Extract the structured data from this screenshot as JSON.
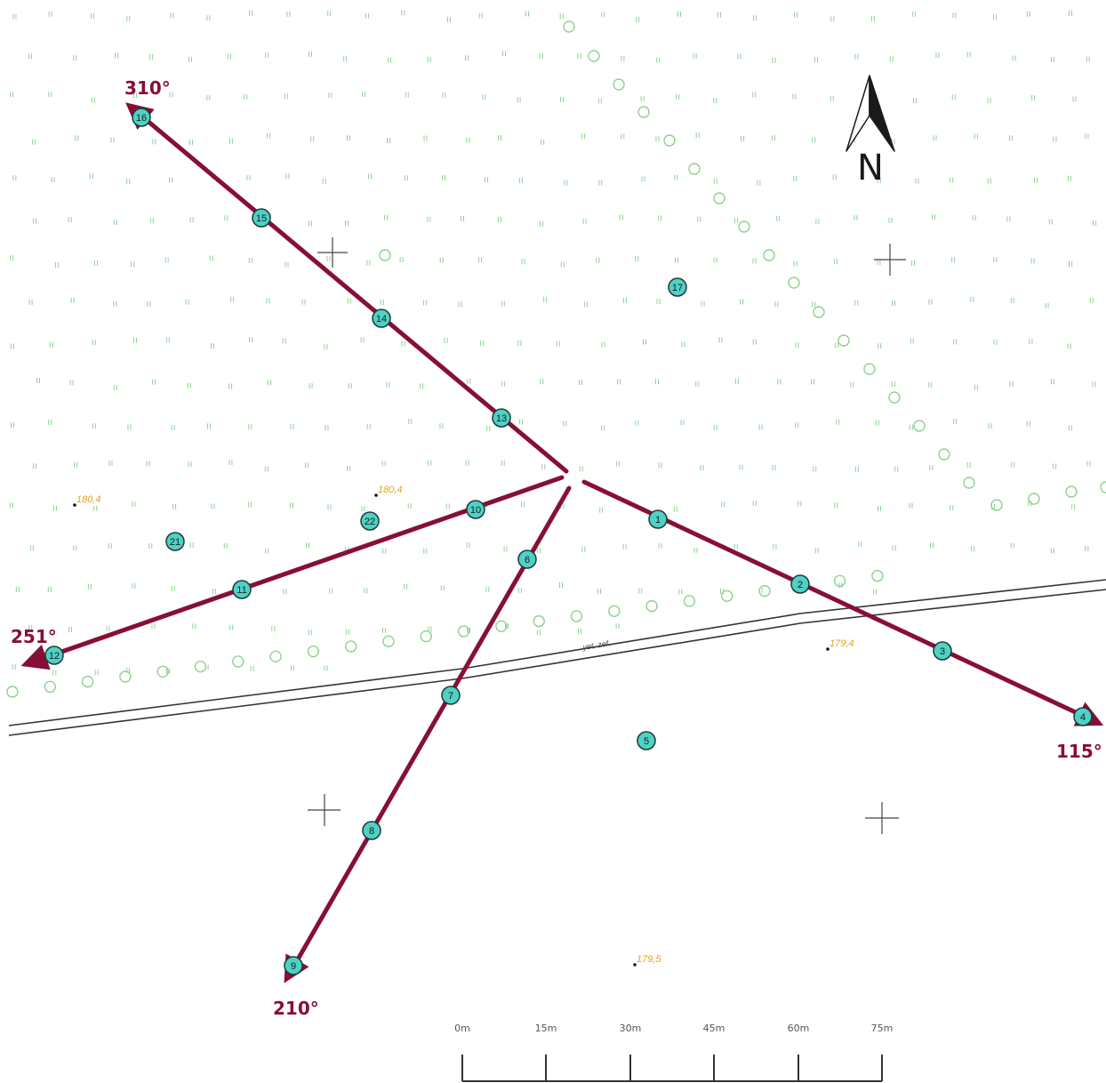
{
  "map": {
    "colors": {
      "transect": "#870f35",
      "point_fill": "#4fd1c5",
      "point_stroke": "#1b3a3a",
      "vegetation": "#8ed28e",
      "spot_height": "#e8a21a",
      "road": "#333333",
      "grid_cross": "#444444"
    },
    "north_arrow": {
      "label": "N",
      "icon": "north-arrow-icon"
    },
    "bearings": [
      {
        "id": "b310",
        "label": "310°"
      },
      {
        "id": "b115",
        "label": "115°"
      },
      {
        "id": "b251",
        "label": "251°"
      },
      {
        "id": "b210",
        "label": "210°"
      }
    ],
    "points": [
      {
        "id": "1",
        "label": "1"
      },
      {
        "id": "2",
        "label": "2"
      },
      {
        "id": "3",
        "label": "3"
      },
      {
        "id": "4",
        "label": "4"
      },
      {
        "id": "5",
        "label": "5"
      },
      {
        "id": "6",
        "label": "6"
      },
      {
        "id": "7",
        "label": "7"
      },
      {
        "id": "8",
        "label": "8"
      },
      {
        "id": "9",
        "label": "9"
      },
      {
        "id": "10",
        "label": "10"
      },
      {
        "id": "11",
        "label": "11"
      },
      {
        "id": "12",
        "label": "12"
      },
      {
        "id": "13",
        "label": "13"
      },
      {
        "id": "14",
        "label": "14"
      },
      {
        "id": "15",
        "label": "15"
      },
      {
        "id": "16",
        "label": "16"
      },
      {
        "id": "17",
        "label": "17"
      },
      {
        "id": "21",
        "label": "21"
      },
      {
        "id": "22",
        "label": "22"
      }
    ],
    "spot_heights": [
      {
        "id": "sh1",
        "label": "180,4"
      },
      {
        "id": "sh2",
        "label": "180,4"
      },
      {
        "id": "sh3",
        "label": "179,4"
      },
      {
        "id": "sh4",
        "label": "179,5"
      }
    ],
    "track_label": "yet. zef.",
    "scale_bar": {
      "ticks": [
        "0m",
        "15m",
        "30m",
        "45m",
        "60m",
        "75m"
      ]
    }
  }
}
